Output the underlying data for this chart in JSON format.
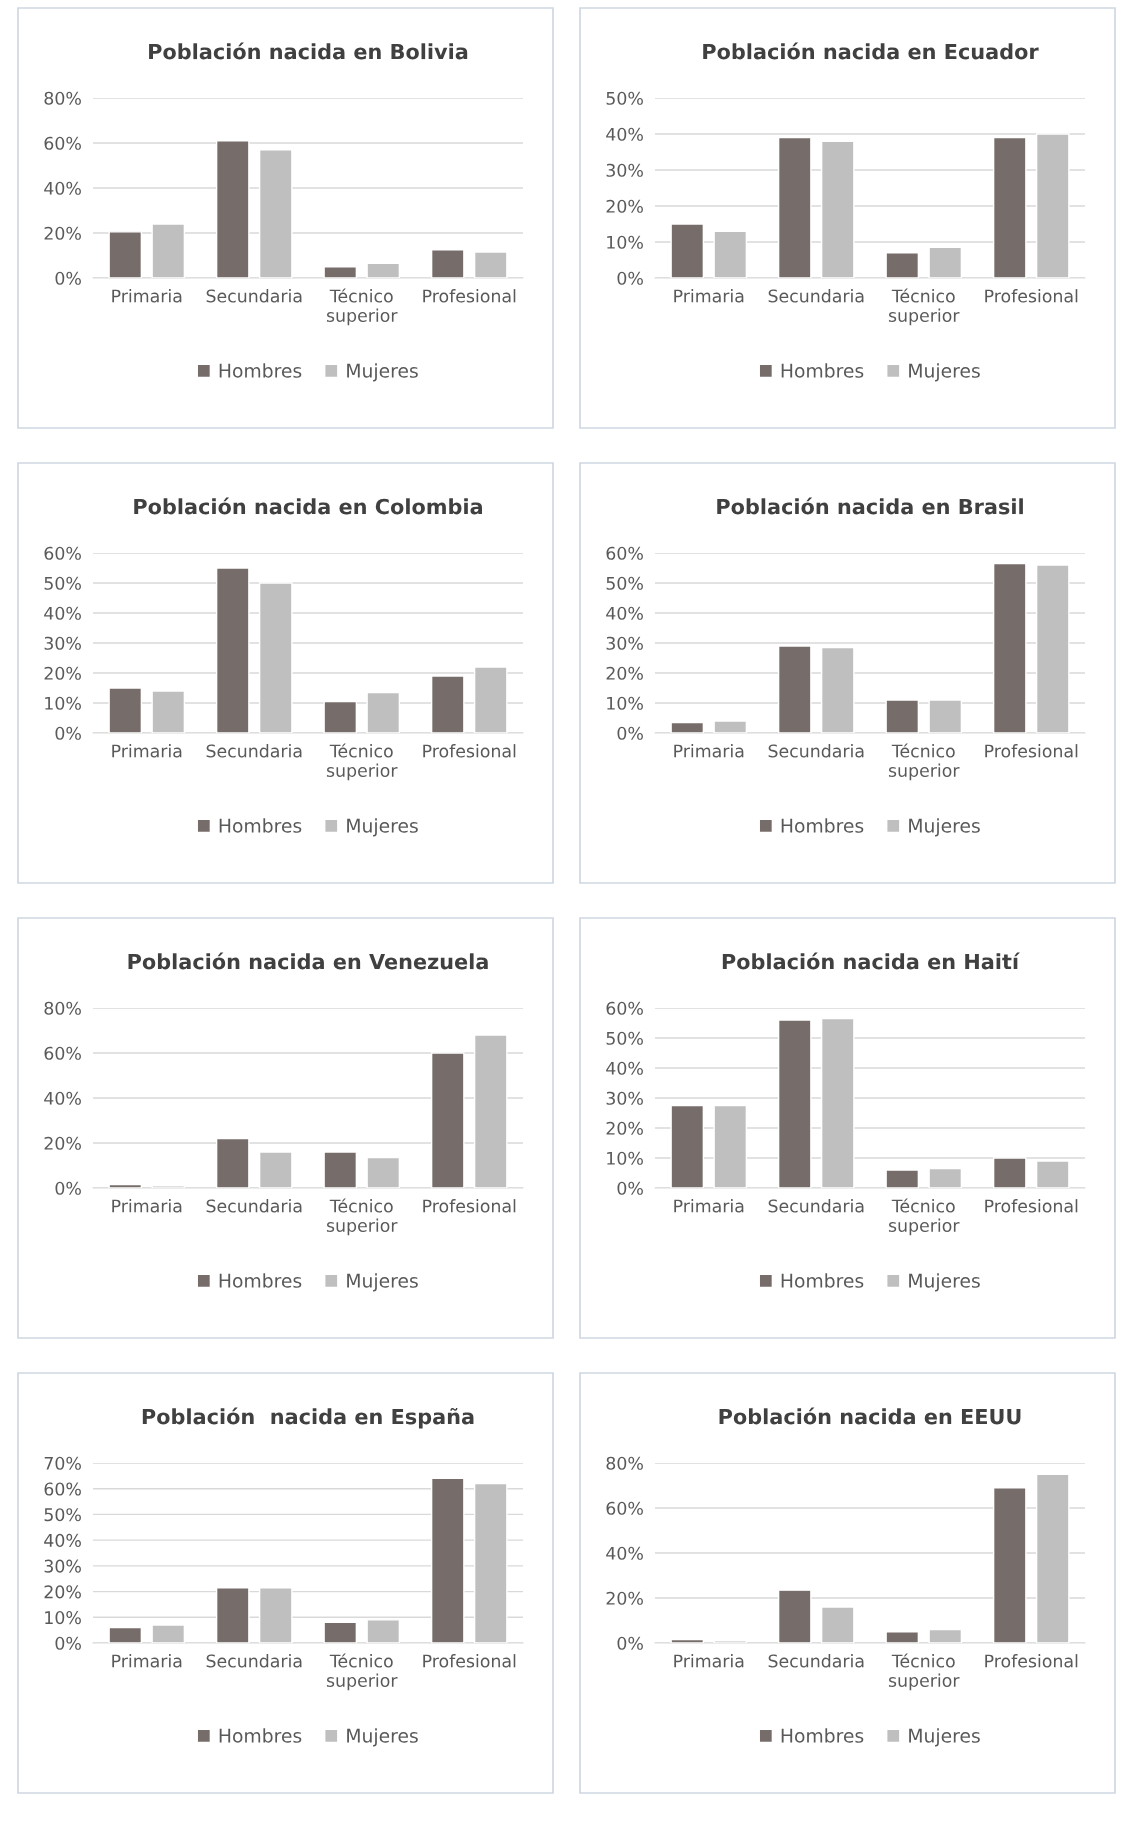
{
  "chart_data": [
    {
      "type": "bar",
      "title": "Población nacida en Bolivia",
      "categories": [
        "Primaria",
        "Secundaria",
        "Técnico\nsuperior",
        "Profesional"
      ],
      "series": [
        {
          "name": "Hombres",
          "color": "#766d6b",
          "values": [
            20.5,
            61,
            5,
            12.5
          ]
        },
        {
          "name": "Mujeres",
          "color": "#bfbfbf",
          "values": [
            24,
            57,
            6.5,
            11.5
          ]
        }
      ],
      "ylim": [
        0,
        80
      ],
      "yticks": [
        {
          "value": 0,
          "label": "0%"
        },
        {
          "value": 20,
          "label": "20%"
        },
        {
          "value": 40,
          "label": "40%"
        },
        {
          "value": 60,
          "label": "60%"
        },
        {
          "value": 80,
          "label": "80%"
        }
      ],
      "grid": "y",
      "legend": "bottom"
    },
    {
      "type": "bar",
      "title": "Población nacida en Ecuador",
      "categories": [
        "Primaria",
        "Secundaria",
        "Técnico\nsuperior",
        "Profesional"
      ],
      "series": [
        {
          "name": "Hombres",
          "color": "#766d6b",
          "values": [
            15,
            39,
            7,
            39
          ]
        },
        {
          "name": "Mujeres",
          "color": "#bfbfbf",
          "values": [
            13,
            38,
            8.5,
            40
          ]
        }
      ],
      "ylim": [
        0,
        50
      ],
      "yticks": [
        {
          "value": 0,
          "label": "0%"
        },
        {
          "value": 10,
          "label": "10%"
        },
        {
          "value": 20,
          "label": "20%"
        },
        {
          "value": 30,
          "label": "30%"
        },
        {
          "value": 40,
          "label": "40%"
        },
        {
          "value": 50,
          "label": "50%"
        }
      ],
      "grid": "y",
      "legend": "bottom"
    },
    {
      "type": "bar",
      "title": "Población nacida en Colombia",
      "categories": [
        "Primaria",
        "Secundaria",
        "Técnico\nsuperior",
        "Profesional"
      ],
      "series": [
        {
          "name": "Hombres",
          "color": "#766d6b",
          "values": [
            15,
            55,
            10.5,
            19
          ]
        },
        {
          "name": "Mujeres",
          "color": "#bfbfbf",
          "values": [
            14,
            50,
            13.5,
            22
          ]
        }
      ],
      "ylim": [
        0,
        60
      ],
      "yticks": [
        {
          "value": 0,
          "label": "0%"
        },
        {
          "value": 10,
          "label": "10%"
        },
        {
          "value": 20,
          "label": "20%"
        },
        {
          "value": 30,
          "label": "30%"
        },
        {
          "value": 40,
          "label": "40%"
        },
        {
          "value": 50,
          "label": "50%"
        },
        {
          "value": 60,
          "label": "60%"
        }
      ],
      "grid": "y",
      "legend": "bottom"
    },
    {
      "type": "bar",
      "title": "Población nacida en Brasil",
      "categories": [
        "Primaria",
        "Secundaria",
        "Técnico\nsuperior",
        "Profesional"
      ],
      "series": [
        {
          "name": "Hombres",
          "color": "#766d6b",
          "values": [
            3.5,
            29,
            11,
            56.5
          ]
        },
        {
          "name": "Mujeres",
          "color": "#bfbfbf",
          "values": [
            4,
            28.5,
            11,
            56
          ]
        }
      ],
      "ylim": [
        0,
        60
      ],
      "yticks": [
        {
          "value": 0,
          "label": "0%"
        },
        {
          "value": 10,
          "label": "10%"
        },
        {
          "value": 20,
          "label": "20%"
        },
        {
          "value": 30,
          "label": "30%"
        },
        {
          "value": 40,
          "label": "40%"
        },
        {
          "value": 50,
          "label": "50%"
        },
        {
          "value": 60,
          "label": "60%"
        }
      ],
      "grid": "y",
      "legend": "bottom"
    },
    {
      "type": "bar",
      "title": "Población nacida en Venezuela",
      "categories": [
        "Primaria",
        "Secundaria",
        "Técnico\nsuperior",
        "Profesional"
      ],
      "series": [
        {
          "name": "Hombres",
          "color": "#766d6b",
          "values": [
            1.5,
            22,
            16,
            60
          ]
        },
        {
          "name": "Mujeres",
          "color": "#bfbfbf",
          "values": [
            1,
            16,
            13.5,
            68
          ]
        }
      ],
      "ylim": [
        0,
        80
      ],
      "yticks": [
        {
          "value": 0,
          "label": "0%"
        },
        {
          "value": 20,
          "label": "20%"
        },
        {
          "value": 40,
          "label": "40%"
        },
        {
          "value": 60,
          "label": "60%"
        },
        {
          "value": 80,
          "label": "80%"
        }
      ],
      "grid": "y",
      "legend": "bottom"
    },
    {
      "type": "bar",
      "title": "Población nacida en Haití",
      "categories": [
        "Primaria",
        "Secundaria",
        "Técnico\nsuperior",
        "Profesional"
      ],
      "series": [
        {
          "name": "Hombres",
          "color": "#766d6b",
          "values": [
            27.5,
            56,
            6,
            10
          ]
        },
        {
          "name": "Mujeres",
          "color": "#bfbfbf",
          "values": [
            27.5,
            56.5,
            6.5,
            9
          ]
        }
      ],
      "ylim": [
        0,
        60
      ],
      "yticks": [
        {
          "value": 0,
          "label": "0%"
        },
        {
          "value": 10,
          "label": "10%"
        },
        {
          "value": 20,
          "label": "20%"
        },
        {
          "value": 30,
          "label": "30%"
        },
        {
          "value": 40,
          "label": "40%"
        },
        {
          "value": 50,
          "label": "50%"
        },
        {
          "value": 60,
          "label": "60%"
        }
      ],
      "grid": "y",
      "legend": "bottom"
    },
    {
      "type": "bar",
      "title": "Población  nacida en España",
      "categories": [
        "Primaria",
        "Secundaria",
        "Técnico\nsuperior",
        "Profesional"
      ],
      "series": [
        {
          "name": "Hombres",
          "color": "#766d6b",
          "values": [
            6,
            21.5,
            8,
            64
          ]
        },
        {
          "name": "Mujeres",
          "color": "#bfbfbf",
          "values": [
            7,
            21.5,
            9,
            62
          ]
        }
      ],
      "ylim": [
        0,
        70
      ],
      "yticks": [
        {
          "value": 0,
          "label": "0%"
        },
        {
          "value": 10,
          "label": "10%"
        },
        {
          "value": 20,
          "label": "20%"
        },
        {
          "value": 30,
          "label": "30%"
        },
        {
          "value": 40,
          "label": "40%"
        },
        {
          "value": 50,
          "label": "50%"
        },
        {
          "value": 60,
          "label": "60%"
        },
        {
          "value": 70,
          "label": "70%"
        }
      ],
      "grid": "y",
      "legend": "bottom"
    },
    {
      "type": "bar",
      "title": "Población nacida en EEUU",
      "categories": [
        "Primaria",
        "Secundaria",
        "Técnico\nsuperior",
        "Profesional"
      ],
      "series": [
        {
          "name": "Hombres",
          "color": "#766d6b",
          "values": [
            1.5,
            23.5,
            5,
            69
          ]
        },
        {
          "name": "Mujeres",
          "color": "#bfbfbf",
          "values": [
            1,
            16,
            6,
            75
          ]
        }
      ],
      "ylim": [
        0,
        80
      ],
      "yticks": [
        {
          "value": 0,
          "label": "0%"
        },
        {
          "value": 20,
          "label": "20%"
        },
        {
          "value": 40,
          "label": "40%"
        },
        {
          "value": 60,
          "label": "60%"
        },
        {
          "value": 80,
          "label": "80%"
        }
      ],
      "grid": "y",
      "legend": "bottom"
    }
  ]
}
